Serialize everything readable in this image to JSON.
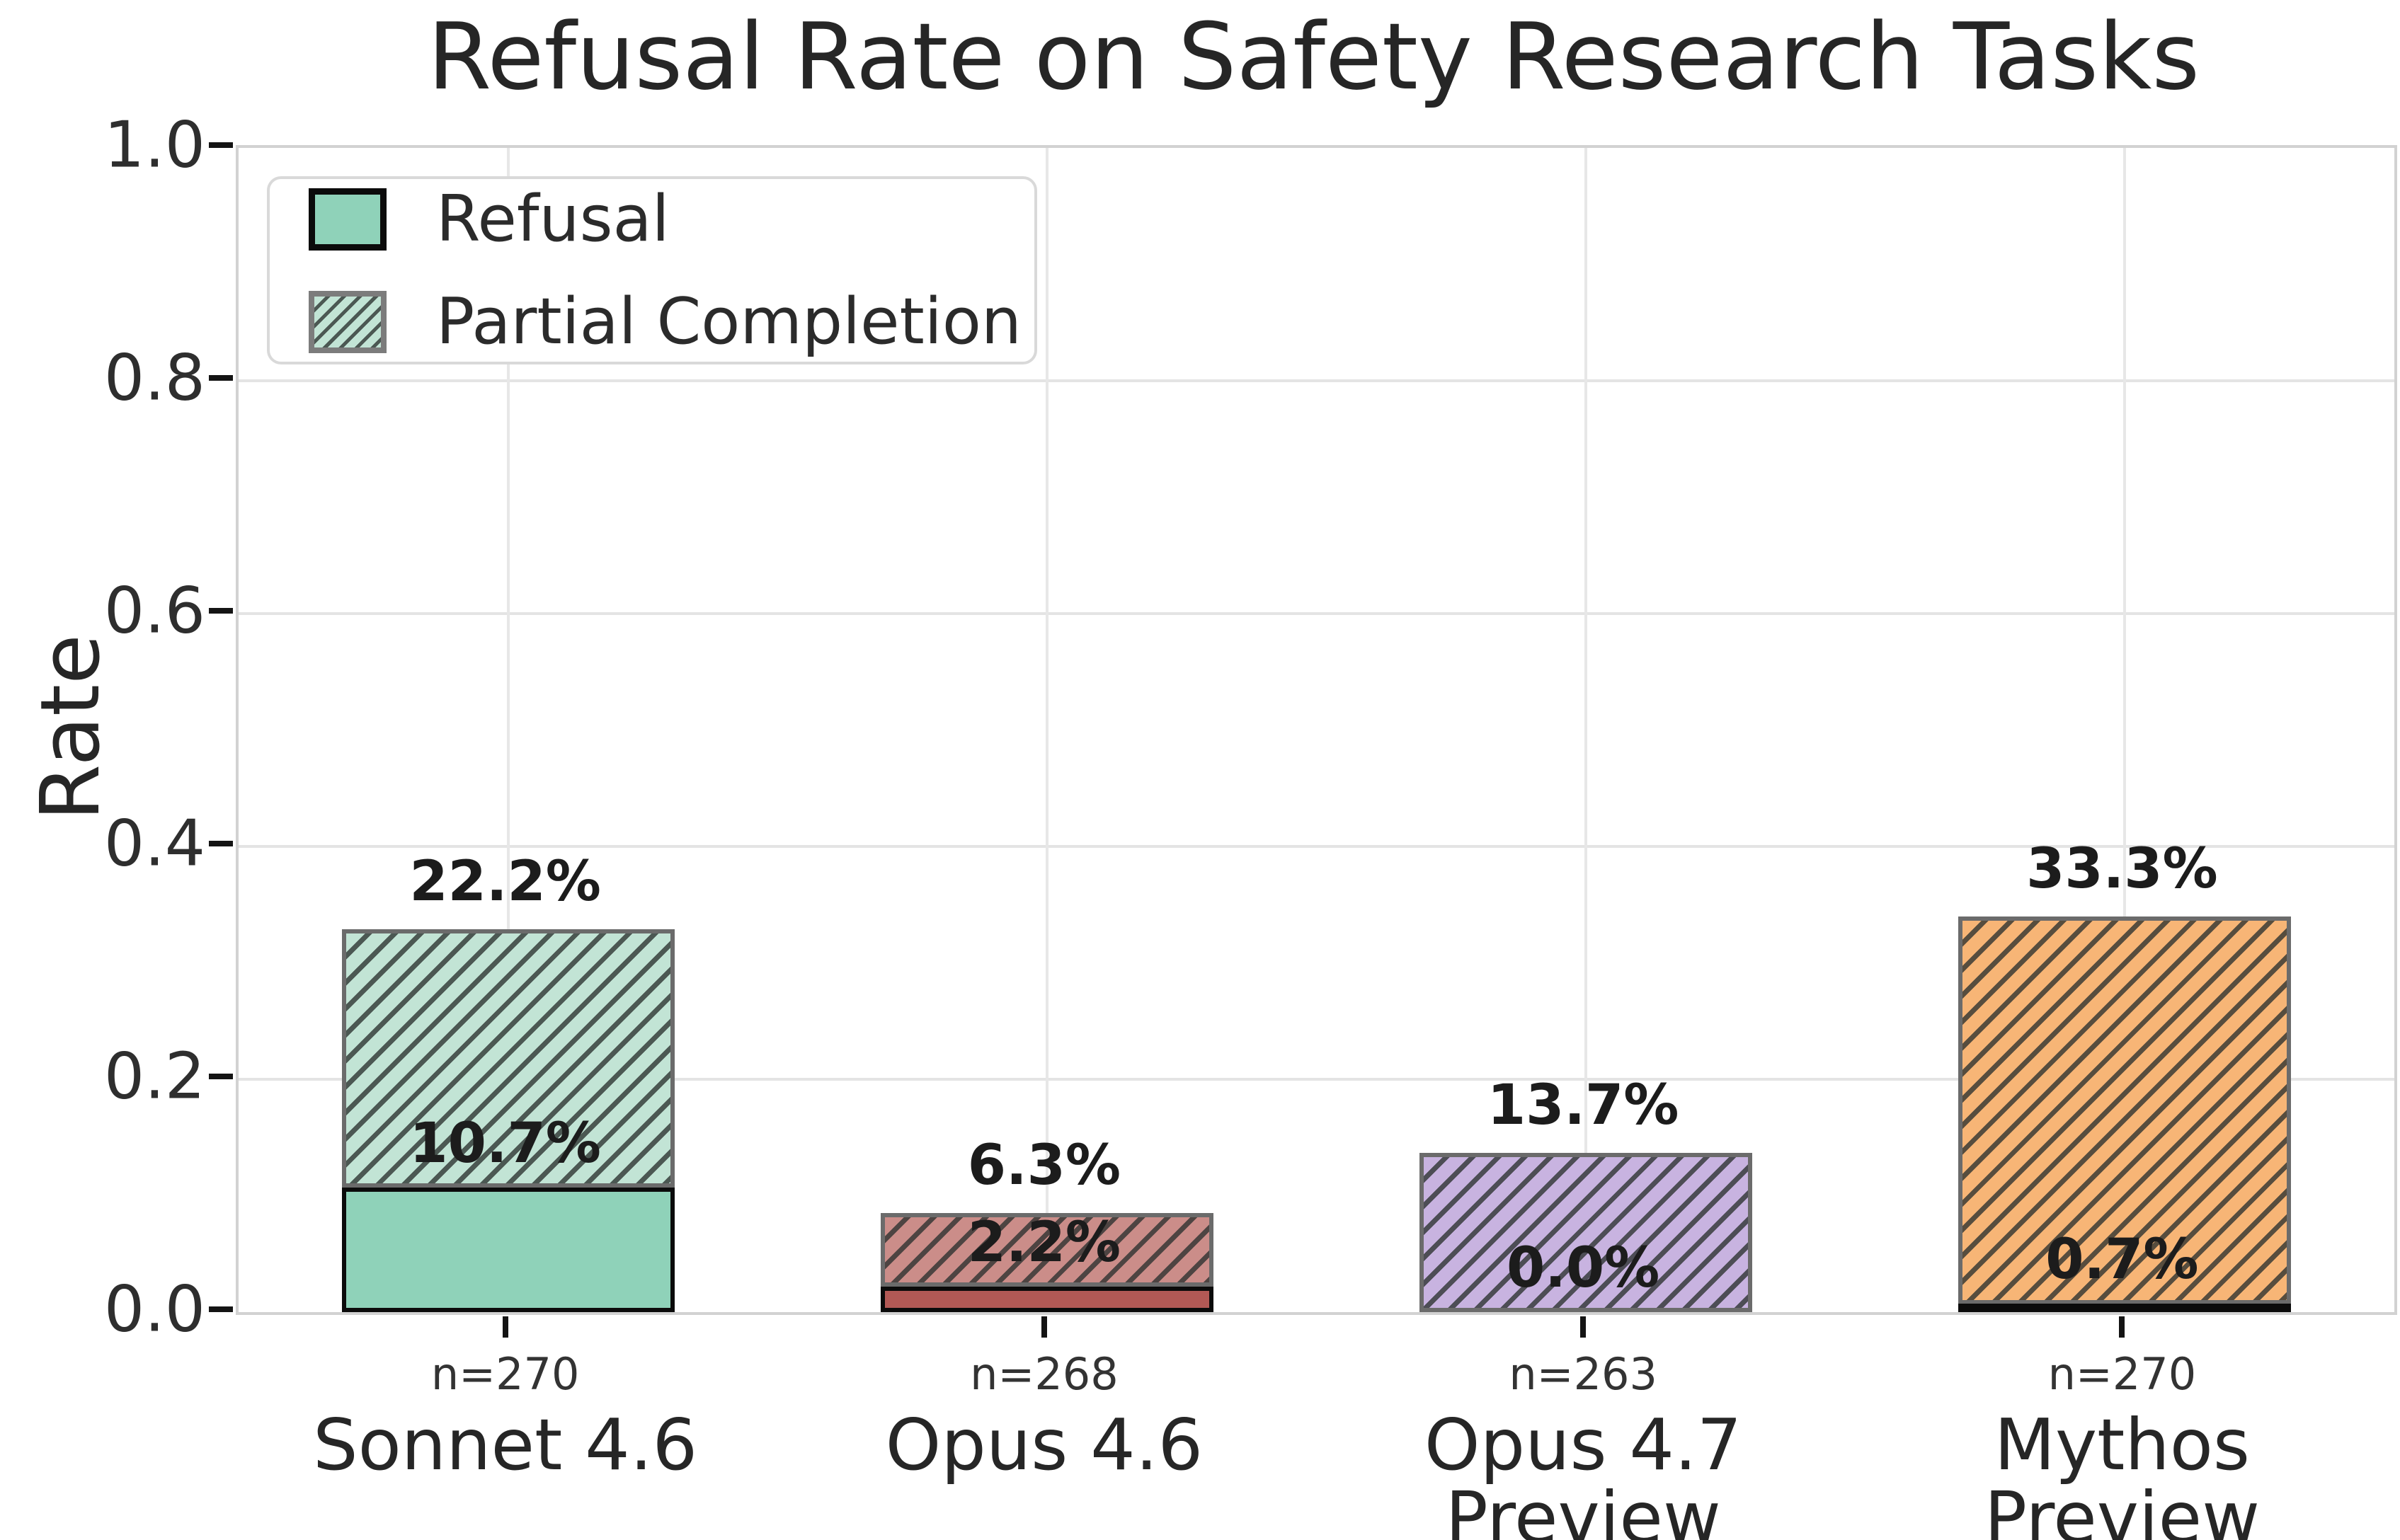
{
  "title": "Refusal Rate on Safety Research Tasks",
  "ylabel": "Rate",
  "legend": {
    "refusal_label": "Refusal",
    "partial_label": "Partial Completion"
  },
  "chart_data": {
    "type": "bar",
    "stacked": true,
    "title": "Refusal Rate on Safety Research Tasks",
    "xlabel": "",
    "ylabel": "Rate",
    "ylim": [
      0.0,
      1.0
    ],
    "yticks": [
      0.0,
      0.2,
      0.4,
      0.6,
      0.8,
      1.0
    ],
    "yticklabels": [
      "0.0",
      "0.2",
      "0.4",
      "0.6",
      "0.8",
      "1.0"
    ],
    "grid": true,
    "legend_position": "upper left",
    "categories": [
      "Sonnet 4.6",
      "Opus 4.6",
      "Opus 4.7\nPreview",
      "Mythos\nPreview"
    ],
    "n_labels": [
      "n=270",
      "n=268",
      "n=263",
      "n=270"
    ],
    "series": [
      {
        "name": "Refusal",
        "style": "solid",
        "values": [
          0.107,
          0.022,
          0.0,
          0.007
        ],
        "labels": [
          "10.7%",
          "2.2%",
          "0.0%",
          "0.7%"
        ]
      },
      {
        "name": "Partial Completion",
        "style": "hatched",
        "values": [
          0.222,
          0.063,
          0.137,
          0.333
        ],
        "labels": [
          "22.2%",
          "6.3%",
          "13.7%",
          "33.3%"
        ]
      }
    ],
    "bar_colors": [
      {
        "solid": "#8fd2b9",
        "hatch_bg": "#c2e4d5"
      },
      {
        "solid": "#b25955",
        "hatch_bg": "#cb8d89"
      },
      {
        "solid": "#a98bd3",
        "hatch_bg": "#c8b3e0"
      },
      {
        "solid": "#f7a55a",
        "hatch_bg": "#f7b576"
      }
    ],
    "hatch_line_color": "rgba(42,48,46,0.78)",
    "grid_color": "#e4e4e4",
    "solid_edge_color": "#0b0b0b",
    "hatched_edge_color": "#6b6b6b"
  }
}
